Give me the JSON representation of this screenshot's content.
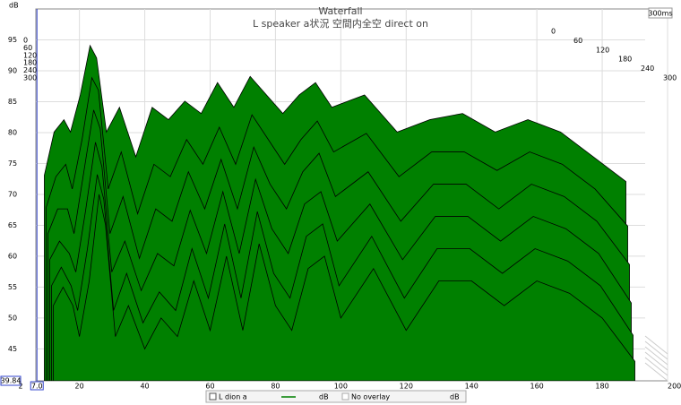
{
  "chart_data": {
    "type": "waterfall",
    "title": "Waterfall",
    "subtitle": "L speaker a状況 空間内全空 direct on",
    "y_label": "dB",
    "time_label": "300ms",
    "x_cursor": {
      "value": 7,
      "label": "7.0"
    },
    "xlim": [
      2,
      200
    ],
    "xticks": [
      2,
      20,
      40,
      60,
      80,
      100,
      120,
      140,
      160,
      180,
      {
        "value": 200,
        "label": "200 Hz"
      }
    ],
    "ylim": [
      39.84,
      100
    ],
    "yticks": [
      39.84,
      45,
      50,
      55,
      60,
      65,
      70,
      75,
      80,
      85,
      90,
      95
    ],
    "time_ticks": [
      0,
      60,
      120,
      180,
      240,
      300
    ],
    "grid": true,
    "color": "#008000",
    "x": [
      12,
      15,
      18,
      20,
      23,
      26,
      28,
      31,
      35,
      40,
      45,
      50,
      55,
      60,
      65,
      70,
      75,
      80,
      85,
      90,
      95,
      100,
      110,
      120,
      130,
      140,
      150,
      160,
      170,
      180,
      190
    ],
    "series": [
      {
        "time": 0,
        "values": [
          67,
          74,
          76,
          74,
          80,
          88,
          86,
          74,
          78,
          70,
          78,
          76,
          79,
          77,
          82,
          78,
          83,
          80,
          77,
          80,
          82,
          78,
          80,
          74,
          76,
          77,
          74,
          76,
          74,
          70,
          66
        ]
      },
      {
        "time": 60,
        "values": [
          63,
          68,
          70,
          66,
          74,
          84,
          82,
          66,
          72,
          62,
          70,
          68,
          74,
          70,
          76,
          70,
          78,
          74,
          70,
          74,
          77,
          72,
          75,
          68,
          72,
          72,
          69,
          72,
          70,
          66,
          60
        ]
      },
      {
        "time": 120,
        "values": [
          60,
          64,
          64,
          60,
          70,
          80,
          77,
          60,
          66,
          56,
          64,
          62,
          70,
          64,
          72,
          64,
          74,
          68,
          64,
          70,
          73,
          66,
          70,
          62,
          68,
          68,
          64,
          68,
          66,
          62,
          55
        ]
      },
      {
        "time": 180,
        "values": [
          57,
          60,
          58,
          55,
          65,
          76,
          72,
          55,
          60,
          52,
          58,
          56,
          65,
          58,
          68,
          58,
          70,
          62,
          58,
          66,
          68,
          60,
          66,
          57,
          64,
          64,
          60,
          64,
          62,
          58,
          50
        ]
      },
      {
        "time": 240,
        "values": [
          54,
          57,
          54,
          50,
          60,
          72,
          68,
          50,
          56,
          48,
          53,
          50,
          60,
          52,
          64,
          52,
          66,
          56,
          52,
          62,
          64,
          54,
          62,
          52,
          60,
          60,
          56,
          60,
          58,
          54,
          46
        ]
      },
      {
        "time": 300,
        "values": [
          52,
          55,
          52,
          47,
          56,
          70,
          65,
          47,
          52,
          45,
          50,
          47,
          56,
          48,
          60,
          48,
          62,
          52,
          48,
          58,
          60,
          50,
          58,
          48,
          56,
          56,
          52,
          56,
          54,
          50,
          43
        ]
      }
    ],
    "legend": [
      "L dion a",
      "dB",
      "No overlay",
      "dB"
    ]
  }
}
